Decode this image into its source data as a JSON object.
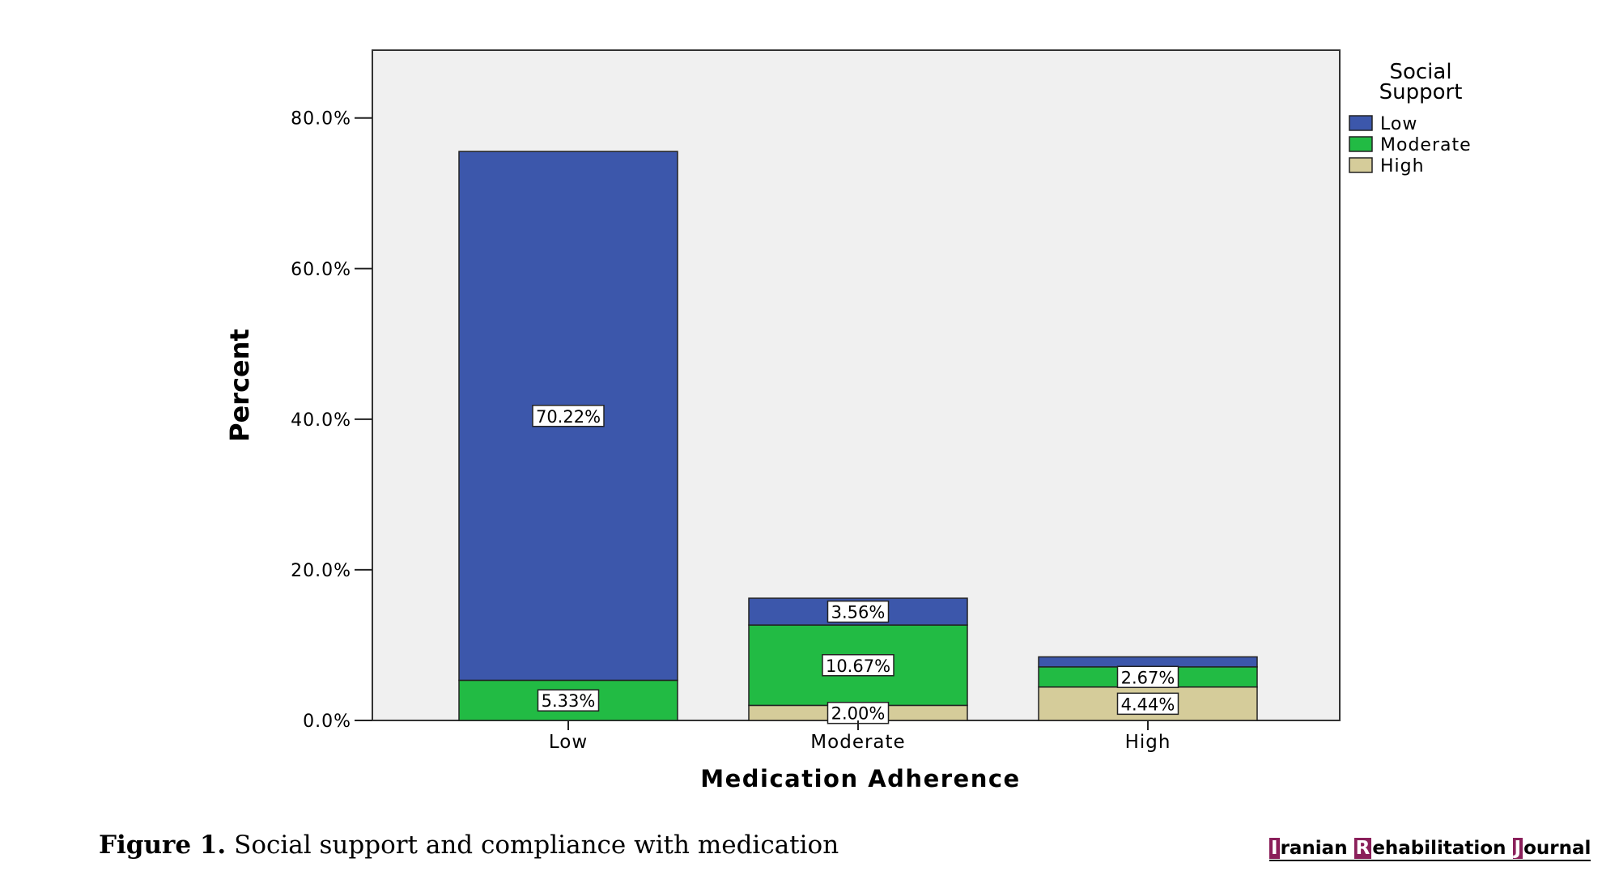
{
  "chart_data": {
    "type": "bar",
    "stacked": true,
    "categories": [
      "Low",
      "Moderate",
      "High"
    ],
    "series": [
      {
        "name": "High",
        "color": "#d5cc9a",
        "values": [
          0.0,
          2.0,
          4.44
        ],
        "labels": [
          "",
          "2.00%",
          "4.44%"
        ]
      },
      {
        "name": "Moderate",
        "color": "#22bb44",
        "values": [
          5.33,
          10.67,
          2.67
        ],
        "labels": [
          "5.33%",
          "10.67%",
          "2.67%"
        ]
      },
      {
        "name": "Low",
        "color": "#3c57ab",
        "values": [
          70.22,
          3.56,
          1.33
        ],
        "labels": [
          "70.22%",
          "3.56%",
          ""
        ]
      }
    ],
    "xlabel": "Medication Adherence",
    "ylabel": "Percent",
    "ylim": [
      0,
      89
    ],
    "yticks": [
      0,
      20,
      40,
      60,
      80
    ],
    "ytick_labels": [
      "0.0%",
      "20.0%",
      "40.0%",
      "60.0%",
      "80.0%"
    ],
    "legend": {
      "title_line1": "Social",
      "title_line2": "Support",
      "entries": [
        {
          "label": "Low",
          "color": "#3c57ab"
        },
        {
          "label": "Moderate",
          "color": "#22bb44"
        },
        {
          "label": "High",
          "color": "#d5cc9a"
        }
      ],
      "position": "right"
    },
    "grid": false,
    "plot_background": "#f0f0f0"
  },
  "caption": {
    "figure_label": "Figure 1.",
    "text": "Social support and compliance with medication"
  },
  "journal": {
    "i": "I",
    "i_rest": "ranian ",
    "r": "R",
    "r_rest": "ehabilitation ",
    "j": "J",
    "j_rest": "ournal"
  }
}
